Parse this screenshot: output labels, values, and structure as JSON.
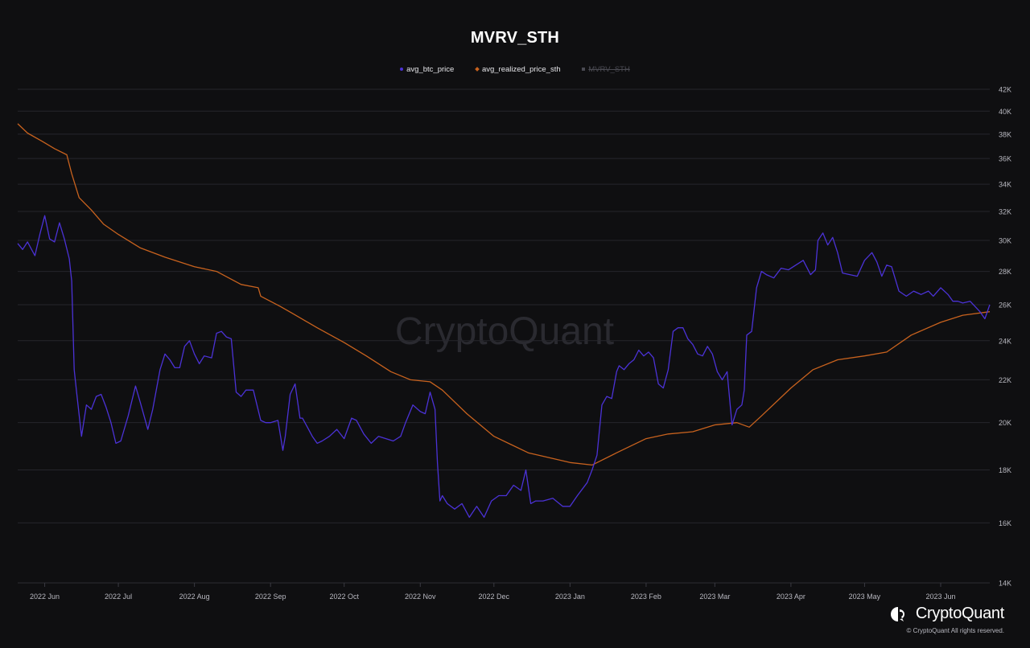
{
  "chart_data": {
    "type": "line",
    "title": "MVRV_STH",
    "y_scale": "log",
    "ylim": [
      14000,
      42000
    ],
    "y_ticks": [
      14000,
      16000,
      18000,
      20000,
      22000,
      24000,
      26000,
      28000,
      30000,
      32000,
      34000,
      36000,
      38000,
      40000,
      42000
    ],
    "y_tick_labels": [
      "14K",
      "16K",
      "18K",
      "20K",
      "22K",
      "24K",
      "26K",
      "28K",
      "30K",
      "32K",
      "34K",
      "36K",
      "38K",
      "40K",
      "42K"
    ],
    "x_range": [
      "2022-05-21",
      "2023-06-21"
    ],
    "x_ticks": [
      "2022-06-01",
      "2022-07-01",
      "2022-08-01",
      "2022-09-01",
      "2022-10-01",
      "2022-11-01",
      "2022-12-01",
      "2023-01-01",
      "2023-02-01",
      "2023-03-01",
      "2023-04-01",
      "2023-05-01",
      "2023-06-01"
    ],
    "x_tick_labels": [
      "2022 Jun",
      "2022 Jul",
      "2022 Aug",
      "2022 Sep",
      "2022 Oct",
      "2022 Nov",
      "2022 Dec",
      "2023 Jan",
      "2023 Feb",
      "2023 Mar",
      "2023 Apr",
      "2023 May",
      "2023 Jun"
    ],
    "grid": true,
    "legend_position": "top-center",
    "series": [
      {
        "name": "avg_btc_price",
        "color": "#4b32d6",
        "x": [
          "2022-05-21",
          "2022-05-23",
          "2022-05-25",
          "2022-05-28",
          "2022-05-30",
          "2022-06-01",
          "2022-06-03",
          "2022-06-05",
          "2022-06-07",
          "2022-06-09",
          "2022-06-11",
          "2022-06-12",
          "2022-06-13",
          "2022-06-14",
          "2022-06-16",
          "2022-06-18",
          "2022-06-20",
          "2022-06-22",
          "2022-06-24",
          "2022-06-26",
          "2022-06-28",
          "2022-06-30",
          "2022-07-02",
          "2022-07-05",
          "2022-07-08",
          "2022-07-10",
          "2022-07-13",
          "2022-07-15",
          "2022-07-18",
          "2022-07-20",
          "2022-07-22",
          "2022-07-24",
          "2022-07-26",
          "2022-07-28",
          "2022-07-30",
          "2022-08-01",
          "2022-08-03",
          "2022-08-05",
          "2022-08-08",
          "2022-08-10",
          "2022-08-12",
          "2022-08-14",
          "2022-08-16",
          "2022-08-18",
          "2022-08-20",
          "2022-08-22",
          "2022-08-25",
          "2022-08-28",
          "2022-08-30",
          "2022-09-01",
          "2022-09-04",
          "2022-09-06",
          "2022-09-07",
          "2022-09-09",
          "2022-09-11",
          "2022-09-13",
          "2022-09-14",
          "2022-09-16",
          "2022-09-18",
          "2022-09-20",
          "2022-09-22",
          "2022-09-25",
          "2022-09-28",
          "2022-10-01",
          "2022-10-04",
          "2022-10-06",
          "2022-10-09",
          "2022-10-12",
          "2022-10-15",
          "2022-10-18",
          "2022-10-21",
          "2022-10-24",
          "2022-10-26",
          "2022-10-29",
          "2022-11-01",
          "2022-11-03",
          "2022-11-05",
          "2022-11-07",
          "2022-11-08",
          "2022-11-09",
          "2022-11-10",
          "2022-11-12",
          "2022-11-15",
          "2022-11-18",
          "2022-11-21",
          "2022-11-24",
          "2022-11-27",
          "2022-11-30",
          "2022-12-03",
          "2022-12-06",
          "2022-12-09",
          "2022-12-12",
          "2022-12-14",
          "2022-12-16",
          "2022-12-18",
          "2022-12-21",
          "2022-12-25",
          "2022-12-29",
          "2023-01-01",
          "2023-01-04",
          "2023-01-08",
          "2023-01-10",
          "2023-01-12",
          "2023-01-14",
          "2023-01-16",
          "2023-01-18",
          "2023-01-20",
          "2023-01-21",
          "2023-01-23",
          "2023-01-25",
          "2023-01-27",
          "2023-01-29",
          "2023-01-31",
          "2023-02-02",
          "2023-02-04",
          "2023-02-06",
          "2023-02-08",
          "2023-02-10",
          "2023-02-12",
          "2023-02-14",
          "2023-02-16",
          "2023-02-18",
          "2023-02-20",
          "2023-02-22",
          "2023-02-24",
          "2023-02-26",
          "2023-02-28",
          "2023-03-02",
          "2023-03-04",
          "2023-03-06",
          "2023-03-08",
          "2023-03-10",
          "2023-03-12",
          "2023-03-13",
          "2023-03-14",
          "2023-03-16",
          "2023-03-18",
          "2023-03-20",
          "2023-03-22",
          "2023-03-25",
          "2023-03-28",
          "2023-03-31",
          "2023-04-03",
          "2023-04-06",
          "2023-04-09",
          "2023-04-11",
          "2023-04-12",
          "2023-04-14",
          "2023-04-16",
          "2023-04-18",
          "2023-04-20",
          "2023-04-22",
          "2023-04-25",
          "2023-04-28",
          "2023-05-01",
          "2023-05-04",
          "2023-05-06",
          "2023-05-08",
          "2023-05-10",
          "2023-05-12",
          "2023-05-15",
          "2023-05-18",
          "2023-05-21",
          "2023-05-24",
          "2023-05-27",
          "2023-05-29",
          "2023-06-01",
          "2023-06-04",
          "2023-06-06",
          "2023-06-08",
          "2023-06-10",
          "2023-06-13",
          "2023-06-15",
          "2023-06-17",
          "2023-06-19",
          "2023-06-21"
        ],
        "y": [
          29800,
          29400,
          29900,
          29000,
          30400,
          31700,
          30100,
          29900,
          31200,
          30100,
          28800,
          27400,
          22500,
          21400,
          19400,
          20800,
          20600,
          21200,
          21300,
          20700,
          20000,
          19100,
          19200,
          20300,
          21700,
          20900,
          19700,
          20600,
          22500,
          23300,
          23000,
          22600,
          22600,
          23700,
          24000,
          23300,
          22800,
          23200,
          23100,
          24400,
          24500,
          24200,
          24100,
          21400,
          21200,
          21500,
          21500,
          20100,
          20000,
          20000,
          20100,
          18800,
          19400,
          21300,
          21800,
          20200,
          20200,
          19800,
          19400,
          19100,
          19200,
          19400,
          19700,
          19300,
          20200,
          20100,
          19500,
          19100,
          19400,
          19300,
          19200,
          19400,
          20000,
          20800,
          20500,
          20400,
          21400,
          20600,
          18300,
          16800,
          17000,
          16700,
          16500,
          16700,
          16200,
          16600,
          16200,
          16800,
          17000,
          17000,
          17400,
          17200,
          18000,
          16700,
          16800,
          16800,
          16900,
          16600,
          16600,
          17000,
          17500,
          18000,
          18600,
          20800,
          21200,
          21100,
          22400,
          22700,
          22500,
          22800,
          23000,
          23500,
          23200,
          23400,
          23100,
          21800,
          21600,
          22500,
          24500,
          24700,
          24700,
          24100,
          23800,
          23300,
          23200,
          23700,
          23300,
          22400,
          22000,
          22400,
          19900,
          20600,
          20800,
          21500,
          24300,
          24500,
          27000,
          28000,
          27800,
          27600,
          28200,
          28100,
          28400,
          28700,
          27800,
          28100,
          30000,
          30500,
          29700,
          30200,
          29200,
          27900,
          27800,
          27700,
          28700,
          29200,
          28600,
          27700,
          28400,
          28300,
          26800,
          26500,
          26800,
          26600,
          26800,
          26500,
          27000,
          26600,
          26200,
          26200,
          26100,
          26200,
          25900,
          25600,
          25200,
          26000
        ]
      },
      {
        "name": "avg_realized_price_sth",
        "color": "#c8621e",
        "x": [
          "2022-05-21",
          "2022-05-25",
          "2022-05-31",
          "2022-06-05",
          "2022-06-10",
          "2022-06-12",
          "2022-06-15",
          "2022-06-20",
          "2022-06-25",
          "2022-07-01",
          "2022-07-10",
          "2022-07-20",
          "2022-08-01",
          "2022-08-10",
          "2022-08-20",
          "2022-08-27",
          "2022-08-28",
          "2022-09-05",
          "2022-09-10",
          "2022-09-20",
          "2022-10-01",
          "2022-10-10",
          "2022-10-20",
          "2022-10-28",
          "2022-11-05",
          "2022-11-10",
          "2022-11-20",
          "2022-12-01",
          "2022-12-15",
          "2023-01-01",
          "2023-01-10",
          "2023-01-20",
          "2023-02-01",
          "2023-02-10",
          "2023-02-20",
          "2023-03-01",
          "2023-03-10",
          "2023-03-15",
          "2023-03-20",
          "2023-04-01",
          "2023-04-10",
          "2023-04-20",
          "2023-05-01",
          "2023-05-10",
          "2023-05-20",
          "2023-06-01",
          "2023-06-10",
          "2023-06-21"
        ],
        "y": [
          38900,
          38100,
          37400,
          36800,
          36300,
          34800,
          33000,
          32100,
          31100,
          30400,
          29500,
          28900,
          28300,
          28000,
          27200,
          27000,
          26500,
          25900,
          25500,
          24700,
          23900,
          23200,
          22400,
          22000,
          21900,
          21500,
          20400,
          19400,
          18700,
          18300,
          18200,
          18700,
          19300,
          19500,
          19600,
          19900,
          20000,
          19800,
          20300,
          21600,
          22500,
          23000,
          23200,
          23400,
          24300,
          25000,
          25400,
          25600
        ]
      },
      {
        "name": "MVRV_STH",
        "color": "#5a5a66",
        "hidden": true
      }
    ]
  },
  "brand": {
    "name": "CryptoQuant",
    "copyright": "© CryptoQuant All rights reserved.",
    "watermark": "CryptoQuant"
  }
}
